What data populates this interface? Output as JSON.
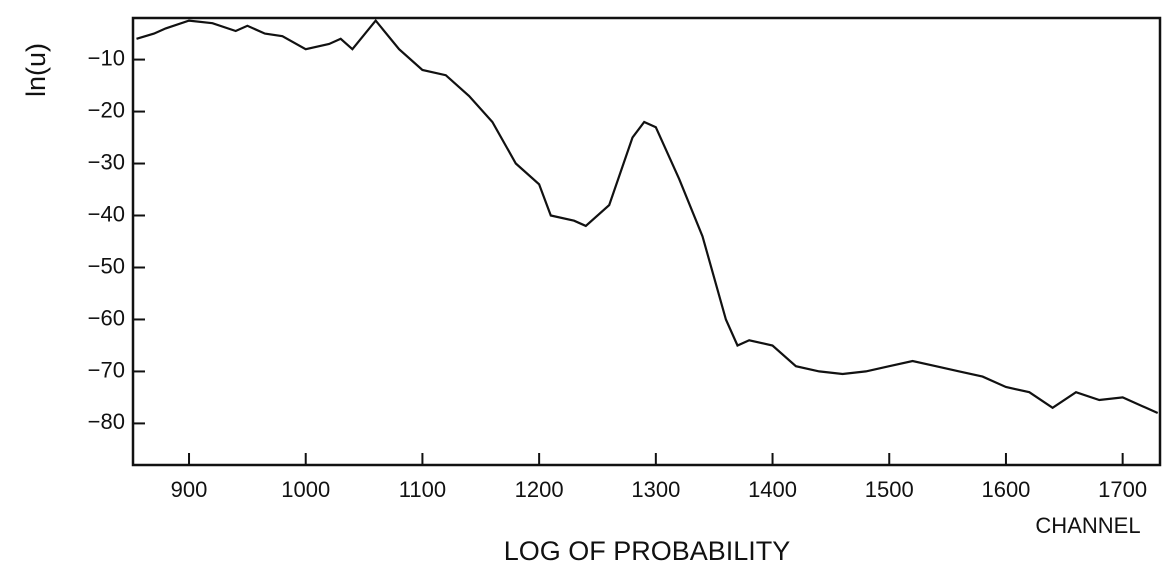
{
  "chart_data": {
    "type": "line",
    "y_label": "ln(u)",
    "x_label": "CHANNEL",
    "caption": "LOG OF PROBABILITY",
    "x": [
      855,
      870,
      880,
      900,
      920,
      940,
      950,
      965,
      980,
      1000,
      1020,
      1030,
      1040,
      1060,
      1080,
      1100,
      1120,
      1140,
      1160,
      1180,
      1200,
      1210,
      1230,
      1240,
      1260,
      1280,
      1290,
      1300,
      1320,
      1340,
      1360,
      1370,
      1380,
      1400,
      1420,
      1440,
      1460,
      1480,
      1500,
      1520,
      1540,
      1560,
      1580,
      1600,
      1620,
      1640,
      1660,
      1680,
      1700,
      1720,
      1730
    ],
    "values": [
      -6,
      -5,
      -4,
      -2.5,
      -3,
      -4.5,
      -3.5,
      -5,
      -5.5,
      -8,
      -7,
      -6,
      -8,
      -2.5,
      -8,
      -12,
      -13,
      -17,
      -22,
      -30,
      -34,
      -40,
      -41,
      -42,
      -38,
      -25,
      -22,
      -23,
      -33,
      -44,
      -60,
      -65,
      -64,
      -65,
      -69,
      -70,
      -70.5,
      -70,
      -69,
      -68,
      -69,
      -70,
      -71,
      -73,
      -74,
      -77,
      -74,
      -75.5,
      -75,
      -77,
      -78
    ],
    "color": "#111111",
    "xlim": [
      852,
      1732
    ],
    "ylim": [
      -88,
      -2
    ],
    "xticks": [
      900,
      1000,
      1100,
      1200,
      1300,
      1400,
      1500,
      1600,
      1700
    ],
    "yticks": [
      {
        "value": -10,
        "label": "−10"
      },
      {
        "value": -20,
        "label": "−20"
      },
      {
        "value": -30,
        "label": "−30"
      },
      {
        "value": -40,
        "label": "−40"
      },
      {
        "value": -50,
        "label": "−50"
      },
      {
        "value": -60,
        "label": "−60"
      },
      {
        "value": -70,
        "label": "−70"
      },
      {
        "value": -80,
        "label": "−80"
      }
    ],
    "grid": false
  }
}
